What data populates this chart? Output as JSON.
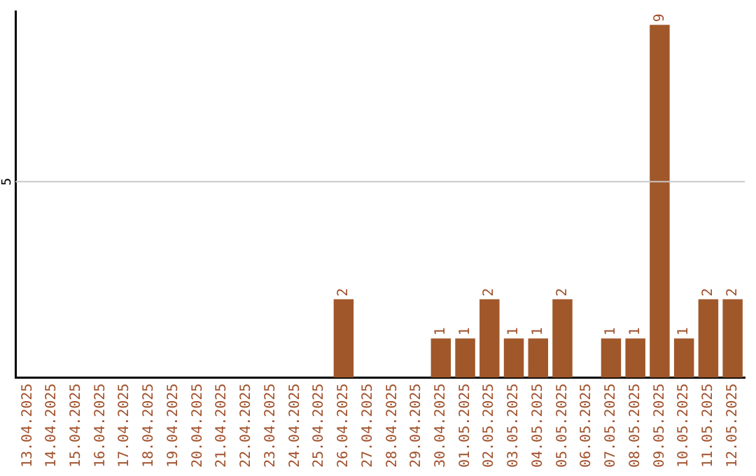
{
  "chart_data": {
    "type": "bar",
    "categories": [
      "13.04.2025",
      "14.04.2025",
      "15.04.2025",
      "16.04.2025",
      "17.04.2025",
      "18.04.2025",
      "19.04.2025",
      "20.04.2025",
      "21.04.2025",
      "22.04.2025",
      "23.04.2025",
      "24.04.2025",
      "25.04.2025",
      "26.04.2025",
      "27.04.2025",
      "28.04.2025",
      "29.04.2025",
      "30.04.2025",
      "01.05.2025",
      "02.05.2025",
      "03.05.2025",
      "04.05.2025",
      "05.05.2025",
      "06.05.2025",
      "07.05.2025",
      "08.05.2025",
      "09.05.2025",
      "10.05.2025",
      "11.05.2025",
      "12.05.2025"
    ],
    "values": [
      null,
      null,
      null,
      null,
      null,
      null,
      null,
      null,
      null,
      null,
      null,
      null,
      null,
      2,
      null,
      null,
      null,
      1,
      1,
      2,
      1,
      1,
      2,
      null,
      1,
      1,
      9,
      1,
      2,
      2
    ],
    "data_labels": true,
    "color": "#a0572a",
    "ylim": [
      0,
      9.35
    ],
    "ref_lines": [
      {
        "axis": "y",
        "value": 5,
        "label": "5",
        "color": "#c8c8c8"
      }
    ],
    "legend": false
  }
}
